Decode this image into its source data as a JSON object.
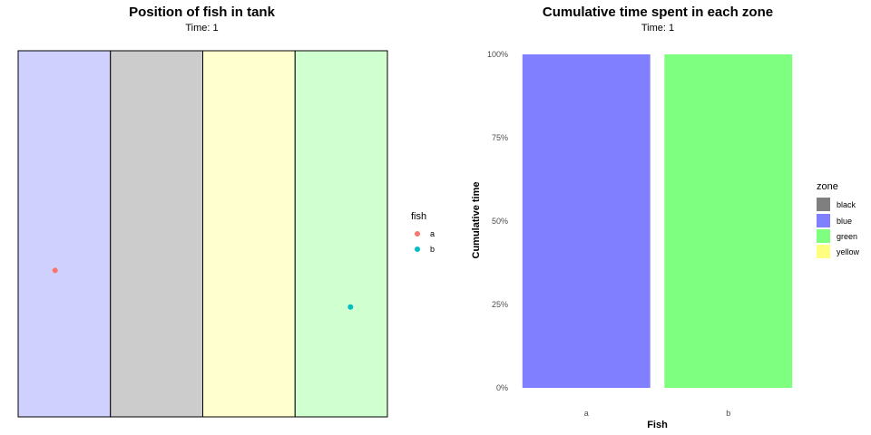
{
  "chart_data": [
    {
      "type": "scatter",
      "title": "Position of fish in tank",
      "subtitle": "Time: 1",
      "zones": [
        {
          "name": "blue",
          "color": "#d0d0ff"
        },
        {
          "name": "black",
          "color": "#cccccc"
        },
        {
          "name": "yellow",
          "color": "#ffffd0"
        },
        {
          "name": "green",
          "color": "#d0ffd0"
        }
      ],
      "legend": {
        "title": "fish",
        "items": [
          {
            "label": "a",
            "color": "#f8766d"
          },
          {
            "label": "b",
            "color": "#00bfc4"
          }
        ]
      },
      "series": [
        {
          "name": "a",
          "x": 0.1,
          "y": 0.4,
          "color": "#f8766d"
        },
        {
          "name": "b",
          "x": 0.9,
          "y": 0.3,
          "color": "#00bfc4"
        }
      ],
      "xlim": [
        0,
        1
      ],
      "ylim": [
        0,
        1
      ],
      "grid": false
    },
    {
      "type": "bar",
      "title": "Cumulative time spent in each zone",
      "subtitle": "Time: 1",
      "xlabel": "Fish",
      "ylabel": "Cumulative time",
      "categories": [
        "a",
        "b"
      ],
      "values": [
        100,
        100
      ],
      "bar_zones": [
        "blue",
        "green"
      ],
      "ylim": [
        0,
        100
      ],
      "y_ticks": [
        {
          "value": 0,
          "label": "0%"
        },
        {
          "value": 25,
          "label": "25%"
        },
        {
          "value": 50,
          "label": "50%"
        },
        {
          "value": 75,
          "label": "75%"
        },
        {
          "value": 100,
          "label": "100%"
        }
      ],
      "legend": {
        "title": "zone",
        "items": [
          {
            "label": "black",
            "color": "#7f7f7f"
          },
          {
            "label": "blue",
            "color": "#7f7fff"
          },
          {
            "label": "green",
            "color": "#7fff7f"
          },
          {
            "label": "yellow",
            "color": "#ffff7f"
          }
        ]
      },
      "grid": false
    }
  ]
}
